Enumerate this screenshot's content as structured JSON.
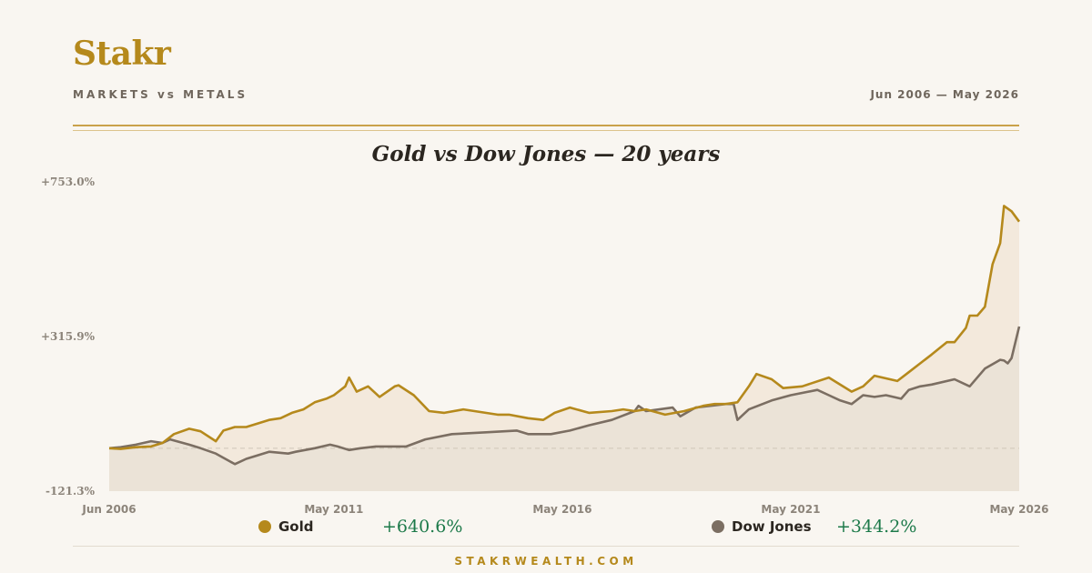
{
  "header": {
    "brand": "Stakr",
    "subtitle": "MARKETS vs METALS",
    "date_range": "Jun 2006 — May 2026"
  },
  "footer": {
    "site": "STAKRWEALTH.COM"
  },
  "legend": [
    {
      "name": "Gold",
      "change": "+640.6%",
      "color": "#b5891c"
    },
    {
      "name": "Dow Jones",
      "change": "+344.2%",
      "color": "#7b6e62"
    }
  ],
  "colors": {
    "gold": "#b5891c",
    "dow": "#7b6e62",
    "positive": "#1d7a4a"
  },
  "chart_data": {
    "type": "line",
    "title": "Gold vs Dow Jones — 20 years",
    "y_unit": "% change",
    "ylim": [
      -121.3,
      753.0
    ],
    "y_ticks": [
      "+753.0%",
      "+315.9%",
      "-121.3%"
    ],
    "x_ticks": [
      "Jun 2006",
      "May 2011",
      "May 2016",
      "May 2021",
      "May 2026"
    ],
    "x_range": [
      "Jun 2006",
      "May 2026"
    ],
    "baseline": 0,
    "series": [
      {
        "name": "Gold",
        "final_change": 640.6,
        "points": [
          [
            "2006-06",
            0
          ],
          [
            "2006-09",
            -2
          ],
          [
            "2007-01",
            3
          ],
          [
            "2007-05",
            5
          ],
          [
            "2007-08",
            15
          ],
          [
            "2007-11",
            40
          ],
          [
            "2008-03",
            55
          ],
          [
            "2008-06",
            48
          ],
          [
            "2008-10",
            20
          ],
          [
            "2008-12",
            50
          ],
          [
            "2009-03",
            60
          ],
          [
            "2009-06",
            60
          ],
          [
            "2009-09",
            70
          ],
          [
            "2009-12",
            80
          ],
          [
            "2010-03",
            85
          ],
          [
            "2010-06",
            100
          ],
          [
            "2010-09",
            110
          ],
          [
            "2010-12",
            130
          ],
          [
            "2011-03",
            140
          ],
          [
            "2011-05",
            150
          ],
          [
            "2011-08",
            175
          ],
          [
            "2011-09",
            200
          ],
          [
            "2011-11",
            160
          ],
          [
            "2012-02",
            175
          ],
          [
            "2012-05",
            145
          ],
          [
            "2012-09",
            175
          ],
          [
            "2012-10",
            178
          ],
          [
            "2013-02",
            150
          ],
          [
            "2013-06",
            105
          ],
          [
            "2013-10",
            100
          ],
          [
            "2014-03",
            110
          ],
          [
            "2014-12",
            95
          ],
          [
            "2015-03",
            95
          ],
          [
            "2015-08",
            85
          ],
          [
            "2015-12",
            80
          ],
          [
            "2016-03",
            100
          ],
          [
            "2016-07",
            115
          ],
          [
            "2016-12",
            100
          ],
          [
            "2017-06",
            105
          ],
          [
            "2017-09",
            110
          ],
          [
            "2017-12",
            105
          ],
          [
            "2018-03",
            110
          ],
          [
            "2018-08",
            95
          ],
          [
            "2019-01",
            105
          ],
          [
            "2019-06",
            120
          ],
          [
            "2019-09",
            125
          ],
          [
            "2019-12",
            125
          ],
          [
            "2020-03",
            130
          ],
          [
            "2020-06",
            175
          ],
          [
            "2020-08",
            210
          ],
          [
            "2020-12",
            195
          ],
          [
            "2021-03",
            170
          ],
          [
            "2021-08",
            175
          ],
          [
            "2022-03",
            200
          ],
          [
            "2022-09",
            160
          ],
          [
            "2022-12",
            175
          ],
          [
            "2023-03",
            205
          ],
          [
            "2023-09",
            190
          ],
          [
            "2023-12",
            215
          ],
          [
            "2024-03",
            240
          ],
          [
            "2024-06",
            265
          ],
          [
            "2024-10",
            300
          ],
          [
            "2024-12",
            300
          ],
          [
            "2025-03",
            340
          ],
          [
            "2025-04",
            375
          ],
          [
            "2025-06",
            375
          ],
          [
            "2025-08",
            400
          ],
          [
            "2025-10",
            520
          ],
          [
            "2025-12",
            580
          ],
          [
            "2026-01",
            685
          ],
          [
            "2026-03",
            670
          ],
          [
            "2026-05",
            640.6
          ]
        ]
      },
      {
        "name": "Dow Jones",
        "final_change": 344.2,
        "points": [
          [
            "2006-06",
            0
          ],
          [
            "2006-09",
            3
          ],
          [
            "2007-01",
            10
          ],
          [
            "2007-05",
            20
          ],
          [
            "2007-08",
            15
          ],
          [
            "2007-10",
            25
          ],
          [
            "2008-03",
            10
          ],
          [
            "2008-06",
            0
          ],
          [
            "2008-10",
            -15
          ],
          [
            "2009-03",
            -45
          ],
          [
            "2009-06",
            -30
          ],
          [
            "2009-09",
            -20
          ],
          [
            "2009-12",
            -10
          ],
          [
            "2010-05",
            -15
          ],
          [
            "2010-07",
            -10
          ],
          [
            "2010-12",
            0
          ],
          [
            "2011-04",
            10
          ],
          [
            "2011-06",
            5
          ],
          [
            "2011-09",
            -5
          ],
          [
            "2011-12",
            0
          ],
          [
            "2012-04",
            5
          ],
          [
            "2012-12",
            5
          ],
          [
            "2013-05",
            25
          ],
          [
            "2013-12",
            40
          ],
          [
            "2014-09",
            45
          ],
          [
            "2015-05",
            50
          ],
          [
            "2015-08",
            40
          ],
          [
            "2016-02",
            40
          ],
          [
            "2016-07",
            50
          ],
          [
            "2016-12",
            65
          ],
          [
            "2017-06",
            80
          ],
          [
            "2017-12",
            105
          ],
          [
            "2018-01",
            120
          ],
          [
            "2018-03",
            105
          ],
          [
            "2018-10",
            115
          ],
          [
            "2018-12",
            90
          ],
          [
            "2019-04",
            115
          ],
          [
            "2019-12",
            125
          ],
          [
            "2020-02",
            125
          ],
          [
            "2020-03",
            80
          ],
          [
            "2020-06",
            110
          ],
          [
            "2020-12",
            135
          ],
          [
            "2021-05",
            150
          ],
          [
            "2021-12",
            165
          ],
          [
            "2022-03",
            150
          ],
          [
            "2022-06",
            135
          ],
          [
            "2022-09",
            125
          ],
          [
            "2022-12",
            150
          ],
          [
            "2023-03",
            145
          ],
          [
            "2023-06",
            150
          ],
          [
            "2023-10",
            140
          ],
          [
            "2023-12",
            165
          ],
          [
            "2024-03",
            175
          ],
          [
            "2024-06",
            180
          ],
          [
            "2024-12",
            195
          ],
          [
            "2025-04",
            175
          ],
          [
            "2025-08",
            225
          ],
          [
            "2025-12",
            250
          ],
          [
            "2026-01",
            248
          ],
          [
            "2026-02",
            240
          ],
          [
            "2026-03",
            255
          ],
          [
            "2026-05",
            344.2
          ]
        ]
      }
    ]
  }
}
